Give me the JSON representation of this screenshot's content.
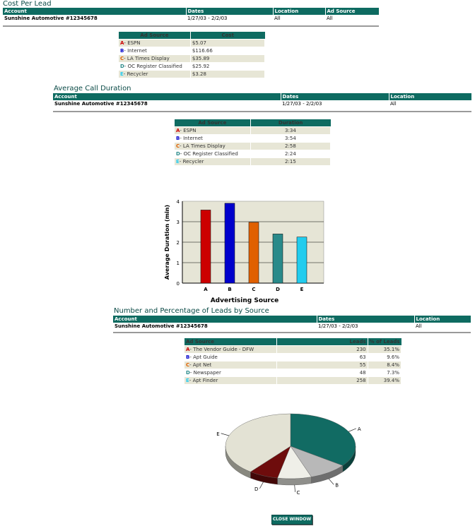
{
  "headers": {
    "account": "Account",
    "dates": "Dates",
    "location": "Location",
    "ad_source": "Ad Source",
    "cost": "Cost",
    "duration": "Duration",
    "leads": "Leads",
    "pct_leads": "% of Leads"
  },
  "account_info": {
    "name": "Sunshine Automotive #12345678",
    "dates": "1/27/03 - 2/2/03",
    "location": "All",
    "ad_source": "All"
  },
  "cost_per_lead": {
    "title": "Cost Per Lead",
    "rows": [
      {
        "letter": "A",
        "name": "ESPN",
        "value": "$5.07"
      },
      {
        "letter": "B",
        "name": "Internet",
        "value": "$116.66"
      },
      {
        "letter": "C",
        "name": "LA Times Display",
        "value": "$35.89"
      },
      {
        "letter": "D",
        "name": "OC Register Classified",
        "value": "$25.92"
      },
      {
        "letter": "E",
        "name": "Recycler",
        "value": "$3.28"
      }
    ]
  },
  "avg_call_duration": {
    "title": "Average Call Duration",
    "rows": [
      {
        "letter": "A",
        "name": "ESPN",
        "value": "3:34"
      },
      {
        "letter": "B",
        "name": "Internet",
        "value": "3:54"
      },
      {
        "letter": "C",
        "name": "LA Times Display",
        "value": "2:58"
      },
      {
        "letter": "D",
        "name": "OC Register Classified",
        "value": "2:24"
      },
      {
        "letter": "E",
        "name": "Recycler",
        "value": "2:15"
      }
    ]
  },
  "leads_by_source": {
    "title": "Number and Percentage of Leads by Source",
    "rows": [
      {
        "letter": "A",
        "name": "The Vendor Guide - DFW",
        "leads": "230",
        "pct": "35.1%"
      },
      {
        "letter": "B",
        "name": "Apt Guide",
        "leads": "63",
        "pct": "9.6%"
      },
      {
        "letter": "C",
        "name": "Apt Net",
        "leads": "55",
        "pct": "8.4%"
      },
      {
        "letter": "D",
        "name": "Newspaper",
        "leads": "48",
        "pct": "7.3%"
      },
      {
        "letter": "E",
        "name": "Apt Finder",
        "leads": "258",
        "pct": "39.4%"
      }
    ]
  },
  "letter_colors": {
    "A": "#cc0000",
    "B": "#0000cc",
    "C": "#e06000",
    "D": "#2a8a8a",
    "E": "#22ccee"
  },
  "close_button": "CLOSE WINDOW",
  "chart_data": [
    {
      "type": "bar",
      "categories": [
        "A",
        "B",
        "C",
        "D",
        "E"
      ],
      "values": [
        3.57,
        3.9,
        2.97,
        2.4,
        2.25
      ],
      "colors": [
        "#cc0000",
        "#0000cc",
        "#e06000",
        "#2a8a8a",
        "#22ccee"
      ],
      "xlabel": "Advertising Source",
      "ylabel": "Average Duration (min)",
      "ylim": [
        0,
        4
      ],
      "yticks": [
        0,
        1,
        2,
        3,
        4
      ],
      "grid": true
    },
    {
      "type": "pie",
      "labels": [
        "A",
        "B",
        "C",
        "D",
        "E"
      ],
      "values": [
        230,
        63,
        55,
        48,
        258
      ],
      "colors": [
        "#116b63",
        "#b8b8b8",
        "#efefe8",
        "#6e0c0c",
        "#e3e2d4"
      ]
    }
  ]
}
